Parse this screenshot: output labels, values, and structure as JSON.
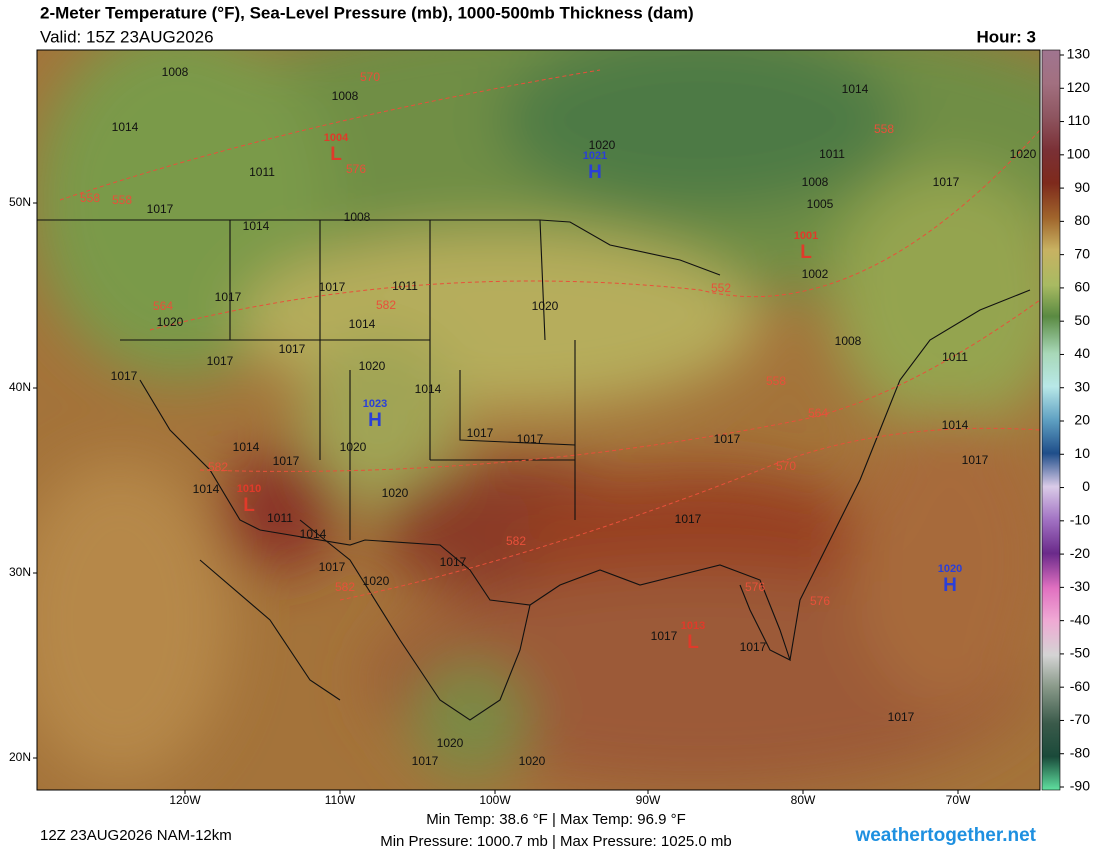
{
  "header": {
    "title": "2-Meter Temperature (°F), Sea-Level Pressure (mb), 1000-500mb Thickness (dam)",
    "valid": "Valid: 15Z 23AUG2026",
    "hour": "Hour: 3"
  },
  "colorbar": {
    "ticks": [
      130,
      120,
      110,
      100,
      90,
      80,
      70,
      60,
      50,
      40,
      30,
      20,
      10,
      0,
      -10,
      -20,
      -30,
      -40,
      -50,
      -60,
      -70,
      -80,
      -90
    ]
  },
  "latitude_labels": [
    "50N",
    "40N",
    "30N",
    "20N"
  ],
  "longitude_labels": [
    "120W",
    "110W",
    "100W",
    "90W",
    "80W",
    "70W"
  ],
  "pressure_centers": [
    {
      "letter": "L",
      "value": 1004
    },
    {
      "letter": "H",
      "value": 1021
    },
    {
      "letter": "L",
      "value": 1001
    },
    {
      "letter": "H",
      "value": 1023
    },
    {
      "letter": "L",
      "value": 1010
    },
    {
      "letter": "H",
      "value": 1020
    },
    {
      "letter": "L",
      "value": 1013
    }
  ],
  "isobar_labels": [
    1008,
    1008,
    1014,
    1011,
    1017,
    1008,
    1014,
    1011,
    1017,
    1017,
    1020,
    1014,
    1020,
    1017,
    1017,
    1020,
    1017,
    1014,
    1017,
    1017,
    1017,
    1014,
    1017,
    1020,
    1014,
    1020,
    1011,
    1014,
    1017,
    1017,
    1020,
    1017,
    1017,
    1017,
    1017,
    1020,
    1017,
    1020,
    1014,
    1017,
    1020,
    1017,
    1014,
    1011,
    1008,
    1005,
    1002,
    1008,
    1011,
    1020
  ],
  "thickness_labels": [
    570,
    576,
    558,
    558,
    564,
    582,
    582,
    582,
    582,
    552,
    558,
    564,
    570,
    576,
    576,
    558
  ],
  "footer": {
    "model_run": "12Z 23AUG2026 NAM-12km",
    "temp_range": "Min Temp:  38.6 °F | Max Temp:  96.9 °F",
    "pressure_range": "Min Pressure: 1000.7 mb | Max Pressure: 1025.0 mb",
    "website": "weathertogether.net"
  }
}
